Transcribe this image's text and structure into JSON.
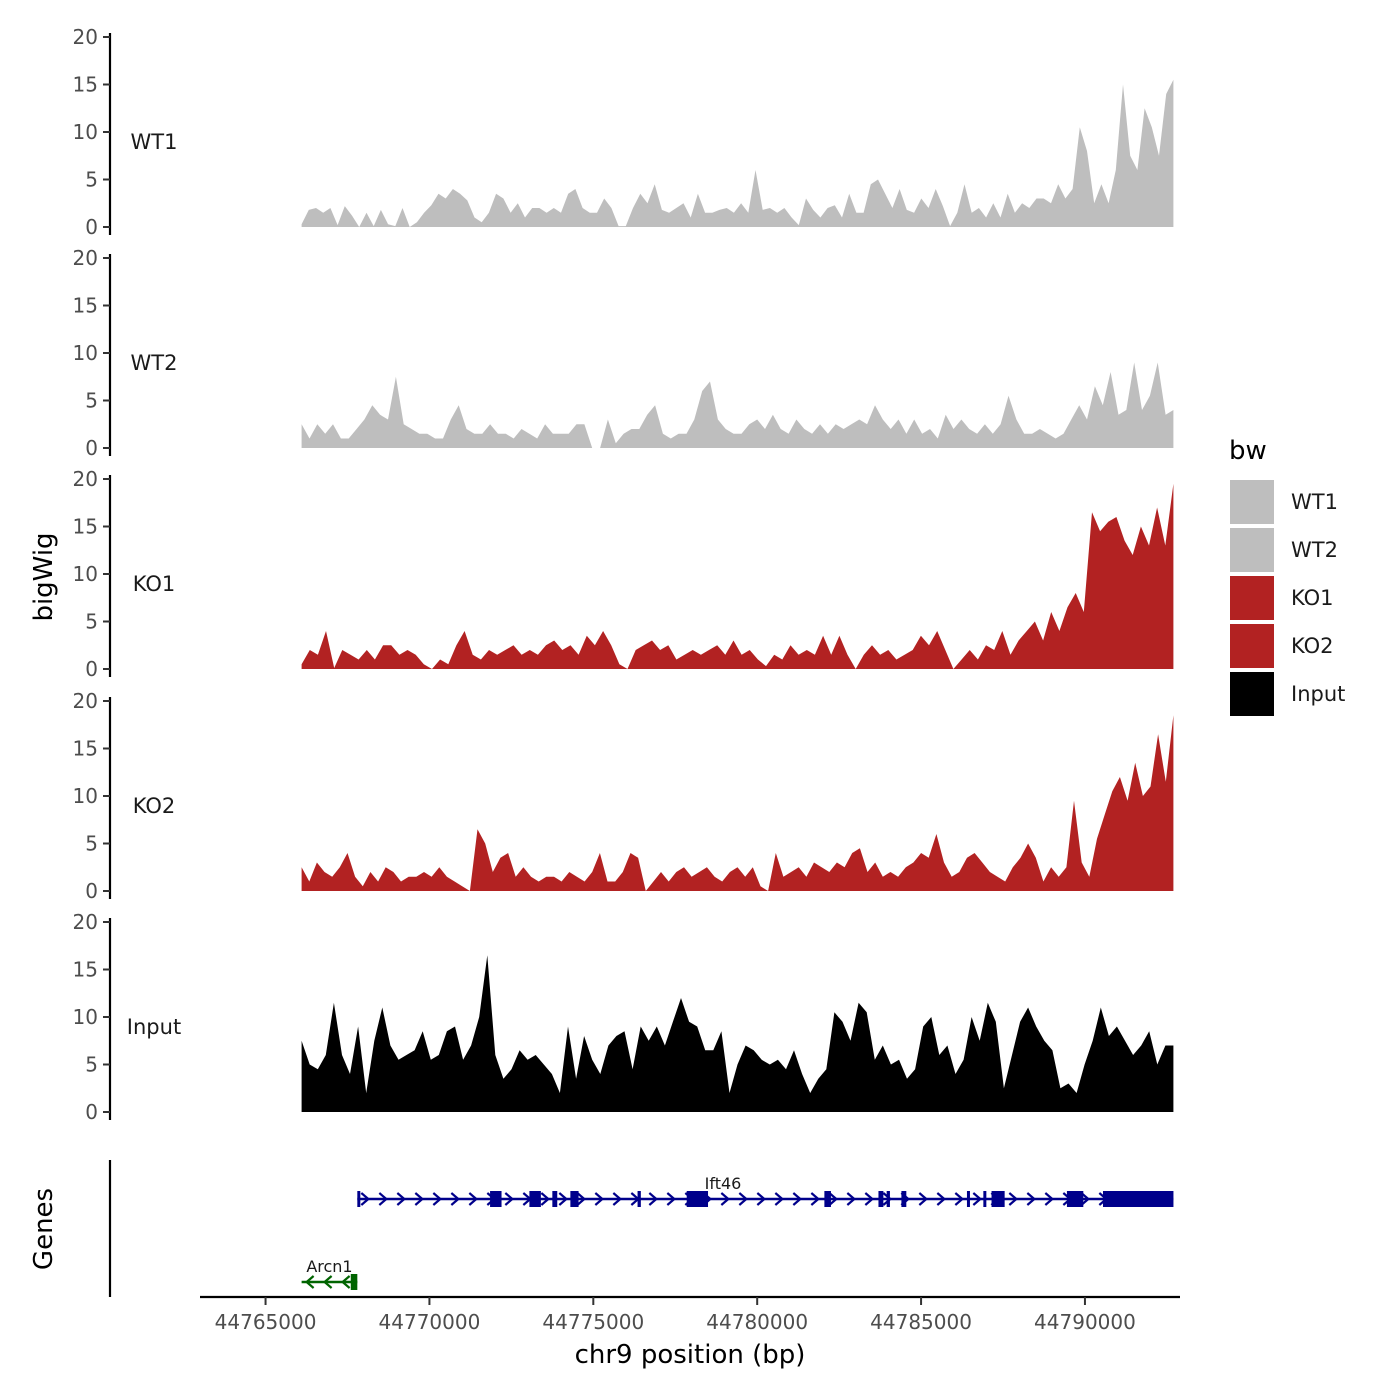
{
  "colors": {
    "WT1": "#BEBEBE",
    "WT2": "#BEBEBE",
    "KO1": "#B22222",
    "KO2": "#B22222",
    "Input": "#000000",
    "gene_forward": "#00008B",
    "gene_reverse": "#006400"
  },
  "chart_data": {
    "type": "area",
    "ylabel": "bigWig",
    "xlabel": "chr9 position (bp)",
    "genes_label": "Genes",
    "xlim": [
      44763000,
      44792900
    ],
    "ylim": [
      0,
      20
    ],
    "yticks": [
      0,
      5,
      10,
      15,
      20
    ],
    "xticks": [
      44765000,
      44770000,
      44775000,
      44780000,
      44785000,
      44790000
    ],
    "x_range": [
      44766100,
      44792700
    ],
    "legend": {
      "title": "bw",
      "position": "right",
      "entries": [
        "WT1",
        "WT2",
        "KO1",
        "KO2",
        "Input"
      ]
    },
    "series": [
      {
        "name": "WT1",
        "values": [
          0.3,
          1.8,
          2.0,
          1.5,
          2.0,
          0.2,
          2.2,
          1.2,
          0,
          1.5,
          0.1,
          1.8,
          0.3,
          0.1,
          2.0,
          0,
          0.5,
          1.5,
          2.3,
          3.5,
          3.0,
          4.0,
          3.5,
          2.8,
          1.0,
          0.5,
          1.5,
          3.5,
          3.0,
          1.5,
          2.5,
          1.0,
          2.0,
          2.0,
          1.5,
          2.0,
          1.5,
          3.5,
          4.0,
          2.0,
          1.5,
          1.5,
          3.0,
          2.0,
          0.1,
          0.1,
          2.0,
          3.5,
          2.5,
          4.5,
          1.8,
          1.5,
          2.0,
          2.5,
          1.0,
          3.5,
          1.5,
          1.5,
          1.8,
          2.0,
          1.5,
          2.5,
          1.5,
          6.0,
          1.8,
          2.0,
          1.5,
          2.0,
          1.0,
          0.2,
          3.0,
          1.8,
          1.0,
          2.0,
          2.3,
          1.0,
          3.5,
          1.5,
          1.5,
          4.5,
          5.0,
          3.5,
          2.0,
          4.0,
          1.8,
          1.5,
          3.0,
          2.0,
          4.0,
          2.2,
          0.1,
          1.5,
          4.5,
          1.5,
          2.0,
          1.0,
          2.5,
          1.0,
          3.5,
          1.5,
          2.5,
          2.0,
          3.0,
          3.0,
          2.5,
          4.5,
          3.0,
          4.0,
          10.5,
          8.0,
          2.5,
          4.5,
          2.5,
          6.0,
          15.0,
          7.5,
          6.0,
          12.5,
          10.5,
          7.5,
          14.0,
          15.5
        ]
      },
      {
        "name": "WT2",
        "values": [
          2.5,
          1.0,
          2.5,
          1.5,
          2.5,
          1.0,
          1.0,
          2.0,
          3.0,
          4.5,
          3.5,
          3.0,
          7.5,
          2.5,
          2.0,
          1.5,
          1.5,
          1.0,
          1.0,
          3.0,
          4.5,
          2.0,
          1.5,
          1.5,
          2.5,
          1.5,
          1.5,
          1.0,
          2.0,
          1.5,
          1.0,
          2.5,
          1.5,
          1.5,
          1.5,
          2.5,
          2.5,
          0,
          0,
          3.0,
          0.5,
          1.5,
          2.0,
          2.0,
          3.5,
          4.5,
          1.5,
          1.0,
          1.5,
          1.5,
          3.0,
          6.0,
          7.0,
          3.0,
          2.0,
          1.5,
          1.5,
          2.5,
          3.0,
          2.0,
          3.5,
          2.0,
          1.5,
          3.0,
          2.0,
          1.5,
          2.5,
          1.5,
          2.5,
          2.0,
          2.5,
          3.0,
          2.5,
          4.5,
          3.0,
          2.0,
          3.0,
          1.5,
          3.0,
          1.5,
          2.0,
          1.0,
          3.5,
          2.0,
          3.0,
          2.0,
          1.5,
          2.5,
          1.5,
          2.5,
          5.5,
          3.0,
          1.5,
          1.5,
          2.0,
          1.5,
          1.0,
          1.5,
          3.0,
          4.5,
          3.0,
          6.5,
          4.5,
          8.0,
          3.5,
          4.0,
          9.0,
          4.0,
          5.5,
          9.0,
          3.5,
          4.0
        ]
      },
      {
        "name": "KO1",
        "values": [
          0.5,
          2.0,
          1.5,
          4.0,
          0.1,
          2.0,
          1.5,
          1.0,
          2.0,
          1.0,
          2.5,
          2.5,
          1.5,
          2.0,
          1.5,
          0.5,
          0,
          1.0,
          0.5,
          2.5,
          4.0,
          1.5,
          1.0,
          2.0,
          1.5,
          2.0,
          2.5,
          1.5,
          2.0,
          1.5,
          2.5,
          3.0,
          2.0,
          2.5,
          1.5,
          3.5,
          2.5,
          4.0,
          2.5,
          0.5,
          0,
          2.0,
          2.5,
          3.0,
          2.0,
          2.5,
          1.0,
          1.5,
          2.0,
          1.5,
          2.0,
          2.5,
          1.5,
          3.0,
          1.5,
          2.0,
          1.0,
          0.3,
          1.5,
          1.0,
          2.5,
          1.5,
          2.0,
          1.5,
          3.5,
          1.5,
          3.5,
          1.5,
          0,
          1.5,
          2.5,
          1.5,
          2.0,
          1.0,
          1.5,
          2.0,
          3.5,
          2.5,
          4.0,
          2.0,
          0,
          1.0,
          2.0,
          1.0,
          2.5,
          2.0,
          4.0,
          1.5,
          3.0,
          4.0,
          5.0,
          3.0,
          6.0,
          4.0,
          6.5,
          8.0,
          6.0,
          16.5,
          14.5,
          15.5,
          16.0,
          13.5,
          12.0,
          15.0,
          13.0,
          17.0,
          13.0,
          19.5
        ]
      },
      {
        "name": "KO2",
        "values": [
          2.5,
          1.0,
          3.0,
          2.0,
          1.5,
          2.5,
          4.0,
          1.5,
          0.5,
          2.0,
          1.0,
          2.5,
          2.0,
          1.0,
          1.5,
          1.5,
          2.0,
          1.5,
          2.5,
          1.5,
          1.0,
          0.5,
          0,
          6.5,
          5.0,
          2.0,
          3.5,
          4.0,
          1.5,
          2.5,
          1.5,
          1.0,
          1.5,
          1.5,
          1.0,
          2.0,
          1.5,
          1.0,
          2.0,
          4.0,
          1.0,
          1.0,
          2.0,
          4.0,
          3.5,
          0,
          1.0,
          2.0,
          1.0,
          2.0,
          2.5,
          1.5,
          2.0,
          2.5,
          1.5,
          1.0,
          2.0,
          2.5,
          1.5,
          2.5,
          0.5,
          0,
          4.0,
          1.5,
          2.0,
          2.5,
          1.5,
          3.0,
          2.5,
          2.0,
          3.0,
          2.5,
          4.0,
          4.5,
          2.0,
          3.0,
          1.5,
          2.0,
          1.5,
          2.5,
          3.0,
          4.0,
          3.5,
          6.0,
          3.0,
          1.5,
          2.0,
          3.5,
          4.0,
          3.0,
          2.0,
          1.5,
          1.0,
          2.5,
          3.5,
          5.0,
          3.5,
          1.0,
          2.5,
          1.5,
          2.5,
          9.5,
          3.0,
          1.5,
          5.5,
          8.0,
          10.5,
          12.0,
          9.5,
          13.5,
          10.0,
          11.0,
          16.5,
          11.5,
          18.5
        ]
      },
      {
        "name": "Input",
        "values": [
          7.5,
          5.0,
          4.5,
          6.0,
          11.5,
          6.0,
          4.0,
          9.0,
          2.0,
          7.5,
          11.0,
          7.0,
          5.5,
          6.0,
          6.5,
          8.5,
          5.5,
          6.0,
          8.5,
          9.0,
          5.5,
          7.0,
          10.0,
          16.5,
          6.0,
          3.5,
          4.5,
          6.5,
          5.5,
          6.0,
          5.0,
          4.0,
          2.0,
          9.0,
          3.5,
          8.0,
          5.5,
          4.0,
          7.0,
          8.0,
          8.5,
          4.5,
          9.0,
          7.5,
          9.0,
          7.0,
          9.5,
          12.0,
          9.5,
          9.0,
          6.5,
          6.5,
          8.5,
          2.0,
          5.0,
          7.0,
          6.5,
          5.5,
          5.0,
          5.5,
          4.5,
          6.5,
          4.0,
          2.0,
          3.5,
          4.5,
          10.5,
          9.5,
          7.5,
          11.5,
          10.5,
          5.5,
          7.0,
          5.0,
          5.5,
          3.5,
          4.5,
          9.0,
          10.0,
          6.0,
          7.0,
          4.0,
          5.5,
          10.0,
          7.5,
          11.5,
          9.5,
          2.5,
          6.0,
          9.5,
          11.0,
          9.0,
          7.5,
          6.5,
          2.5,
          3.0,
          2.0,
          5.0,
          7.5,
          11.0,
          8.0,
          9.0,
          7.5,
          6.0,
          7.0,
          8.5,
          5.0,
          7.0,
          7.0
        ]
      }
    ],
    "genes": [
      {
        "name": "Ift46",
        "strand": "+",
        "start": 44767800,
        "end": 44792700,
        "exons": [
          [
            44767800,
            44767850
          ],
          [
            44771850,
            44772200
          ],
          [
            44773050,
            44773400
          ],
          [
            44773750,
            44773900
          ],
          [
            44774300,
            44774550
          ],
          [
            44776350,
            44776450
          ],
          [
            44777850,
            44778500
          ],
          [
            44782050,
            44782250
          ],
          [
            44783700,
            44783850
          ],
          [
            44783950,
            44784050
          ],
          [
            44784400,
            44784550
          ],
          [
            44786400,
            44786450
          ],
          [
            44786900,
            44786950
          ],
          [
            44787150,
            44787550
          ],
          [
            44789450,
            44789950
          ],
          [
            44790550,
            44792700
          ]
        ]
      },
      {
        "name": "Arcn1",
        "strand": "-",
        "start": 44766100,
        "end": 44767800,
        "exons": [
          [
            44767600,
            44767800
          ]
        ]
      }
    ]
  }
}
